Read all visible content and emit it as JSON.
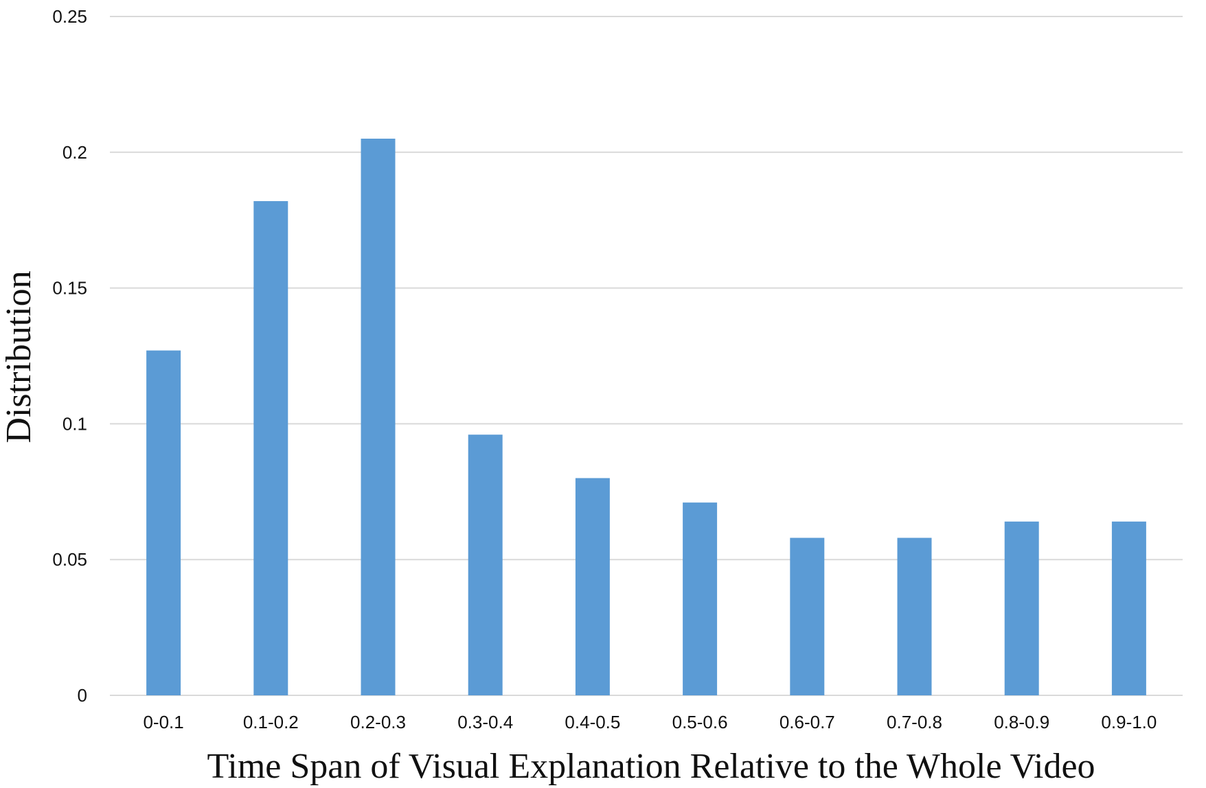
{
  "chart_data": {
    "type": "bar",
    "title": "",
    "xlabel": "Time Span of Visual Explanation Relative to the Whole Video",
    "ylabel": "Distribution",
    "categories": [
      "0-0.1",
      "0.1-0.2",
      "0.2-0.3",
      "0.3-0.4",
      "0.4-0.5",
      "0.5-0.6",
      "0.6-0.7",
      "0.7-0.8",
      "0.8-0.9",
      "0.9-1.0"
    ],
    "values": [
      0.127,
      0.182,
      0.205,
      0.096,
      0.08,
      0.071,
      0.058,
      0.058,
      0.064,
      0.064
    ],
    "ylim": [
      0,
      0.25
    ],
    "yticks": [
      0,
      0.05,
      0.1,
      0.15,
      0.2,
      0.25
    ],
    "ytick_labels": [
      "0",
      "0.05",
      "0.1",
      "0.15",
      "0.2",
      "0.25"
    ],
    "grid": true,
    "legend": "none",
    "colors": {
      "bar": "#5b9bd5",
      "grid": "#d9d9d9",
      "text": "#111111"
    }
  }
}
